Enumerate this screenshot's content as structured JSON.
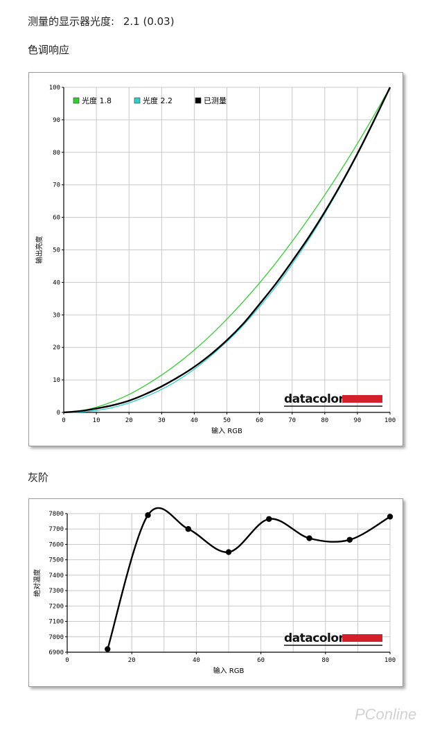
{
  "header": {
    "gamma_label": "测量的显示器光度:",
    "gamma_value": "2.1 (0.03)",
    "tone_title": "色调响应",
    "gray_title": "灰阶"
  },
  "brand": {
    "logo_text": "datacolor",
    "logo_accent": "#d3202a"
  },
  "watermark": "PConline",
  "chart_data": [
    {
      "type": "line",
      "title": "",
      "xlabel": "输入 RGB",
      "ylabel": "输出亮度",
      "xlim": [
        0,
        100
      ],
      "ylim": [
        0,
        100
      ],
      "xticks": [
        0,
        10,
        20,
        30,
        40,
        50,
        60,
        70,
        80,
        90,
        100
      ],
      "yticks": [
        0,
        10,
        20,
        30,
        40,
        50,
        60,
        70,
        80,
        90,
        100
      ],
      "grid": true,
      "legend_position": "top-left",
      "series": [
        {
          "name": "光度 1.8",
          "color": "#33cc33",
          "x": [
            0,
            5,
            10,
            15,
            20,
            25,
            30,
            35,
            40,
            45,
            50,
            55,
            60,
            65,
            70,
            75,
            80,
            85,
            90,
            95,
            100
          ],
          "y": [
            0,
            0.5,
            1.6,
            3.3,
            5.5,
            8.3,
            11.5,
            15.1,
            19.2,
            23.7,
            28.7,
            34.1,
            39.8,
            46.0,
            52.6,
            59.6,
            66.9,
            74.6,
            82.7,
            91.2,
            100
          ]
        },
        {
          "name": "光度 2.2",
          "color": "#33cccc",
          "x": [
            0,
            5,
            10,
            15,
            20,
            25,
            30,
            35,
            40,
            45,
            50,
            55,
            60,
            65,
            70,
            75,
            80,
            85,
            90,
            95,
            100
          ],
          "y": [
            0,
            0.1,
            0.6,
            1.5,
            2.9,
            4.8,
            7.1,
            9.9,
            13.3,
            17.3,
            21.8,
            26.8,
            32.5,
            38.7,
            45.6,
            53.1,
            61.2,
            69.9,
            79.3,
            89.3,
            100
          ]
        },
        {
          "name": "已测量",
          "color": "#000000",
          "x": [
            0,
            5,
            10,
            15,
            20,
            25,
            30,
            35,
            40,
            45,
            50,
            55,
            60,
            65,
            70,
            75,
            80,
            85,
            90,
            95,
            100
          ],
          "y": [
            0,
            0.4,
            1.2,
            2.2,
            3.6,
            5.6,
            8.0,
            10.8,
            14.0,
            17.8,
            22.2,
            27.3,
            33.3,
            39.6,
            46.5,
            53.8,
            61.7,
            70.3,
            79.6,
            89.6,
            100
          ]
        }
      ]
    },
    {
      "type": "line",
      "title": "",
      "xlabel": "输入 RGB",
      "ylabel": "绝对温度",
      "xlim": [
        0,
        100
      ],
      "ylim": [
        6900,
        7800
      ],
      "xticks": [
        0,
        20,
        40,
        60,
        80,
        100
      ],
      "yticks": [
        6900,
        7000,
        7100,
        7200,
        7300,
        7400,
        7500,
        7600,
        7700,
        7800
      ],
      "grid": true,
      "series": [
        {
          "color": "#000000",
          "x": [
            12.5,
            25,
            37.5,
            50,
            62.5,
            75,
            87.5,
            100
          ],
          "y": [
            6920,
            7790,
            7700,
            7550,
            7765,
            7640,
            7630,
            7780
          ]
        }
      ]
    }
  ]
}
